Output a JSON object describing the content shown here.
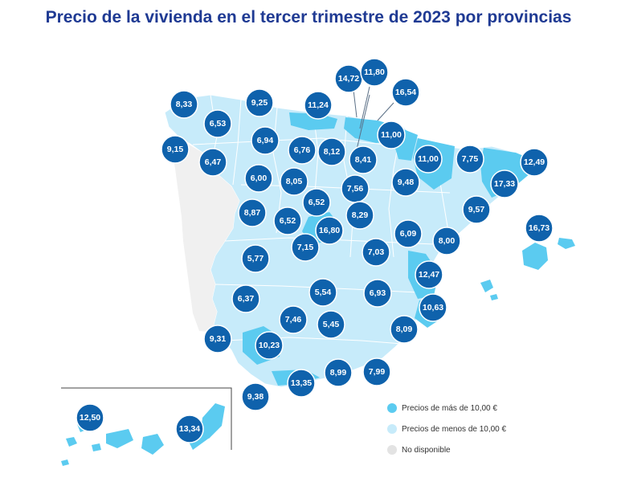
{
  "title": "Precio de la vivienda en el tercer trimestre de 2023 por provincias",
  "colors": {
    "high": "#5bcbf0",
    "low": "#c7ebfa",
    "na": "#e3e3e3",
    "bubble": "#0f62ac",
    "title": "#1f3a93"
  },
  "legend": [
    {
      "label": "Precios de más de 10,00 €",
      "color": "#5bcbf0"
    },
    {
      "label": "Precios de menos de 10,00 €",
      "color": "#c7ebfa"
    },
    {
      "label": "No disponible",
      "color": "#e3e3e3"
    }
  ],
  "values": [
    "8,33",
    "9,25",
    "11,24",
    "14,72",
    "11,80",
    "16,54",
    "6,53",
    "11,00",
    "9,15",
    "6,94",
    "6,76",
    "8,12",
    "8,41",
    "11,00",
    "7,75",
    "12,49",
    "6,47",
    "6,00",
    "8,05",
    "7,56",
    "9,48",
    "17,33",
    "6,52",
    "9,57",
    "8,87",
    "6,52",
    "8,29",
    "16,73",
    "16,80",
    "6,09",
    "8,00",
    "7,15",
    "7,03",
    "5,77",
    "12,47",
    "5,54",
    "6,93",
    "6,37",
    "10,63",
    "7,46",
    "5,45",
    "9,31",
    "8,09",
    "10,23",
    "8,99",
    "7,99",
    "13,35",
    "9,38",
    "12,50",
    "13,34"
  ]
}
